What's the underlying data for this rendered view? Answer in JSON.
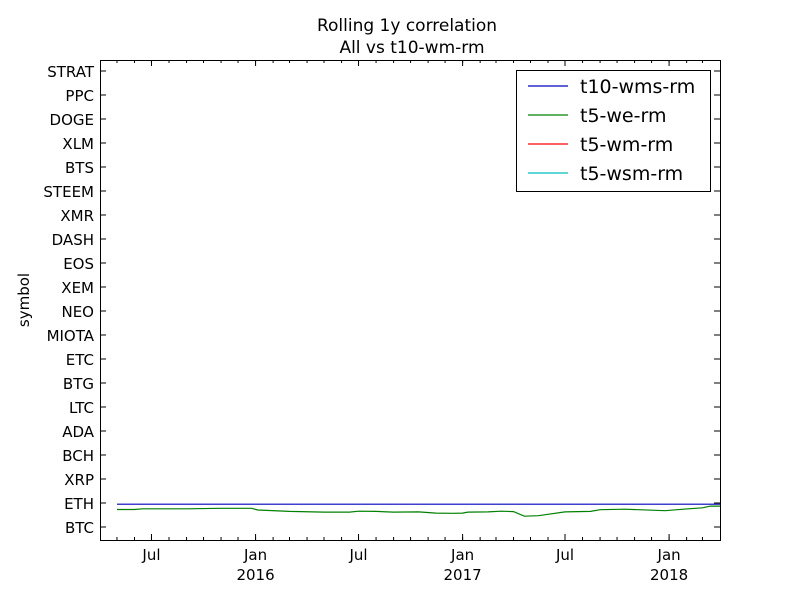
{
  "chart_data": {
    "type": "line",
    "title": "Rolling 1y correlation",
    "subtitle": "All vs t10-wm-rm",
    "xlabel": "",
    "ylabel": "symbol",
    "categories": [
      "BTC",
      "ETH",
      "XRP",
      "BCH",
      "ADA",
      "LTC",
      "BTG",
      "ETC",
      "MIOTA",
      "NEO",
      "XEM",
      "EOS",
      "DASH",
      "XMR",
      "STEEM",
      "BTS",
      "XLM",
      "DOGE",
      "PPC",
      "STRAT"
    ],
    "xlim": [
      "2015-04-01",
      "2018-04-01"
    ],
    "x_ticks": [
      {
        "date": "2015-07-01",
        "label": "Jul",
        "year": ""
      },
      {
        "date": "2016-01-01",
        "label": "Jan",
        "year": "2016"
      },
      {
        "date": "2016-07-01",
        "label": "Jul",
        "year": ""
      },
      {
        "date": "2017-01-01",
        "label": "Jan",
        "year": "2017"
      },
      {
        "date": "2017-07-01",
        "label": "Jul",
        "year": ""
      },
      {
        "date": "2018-01-01",
        "label": "Jan",
        "year": "2018"
      }
    ],
    "legend_position": "top-right",
    "grid": false,
    "series": [
      {
        "name": "t10-wms-rm",
        "color": "#0000bf",
        "points": [
          [
            "2015-05-01",
            0.95
          ],
          [
            "2018-04-01",
            0.95
          ]
        ]
      },
      {
        "name": "t5-we-rm",
        "color": "#008000",
        "points": [
          [
            "2015-05-01",
            0.73
          ],
          [
            "2015-06-01",
            0.73
          ],
          [
            "2015-06-15",
            0.76
          ],
          [
            "2015-09-01",
            0.76
          ],
          [
            "2015-11-01",
            0.78
          ],
          [
            "2015-12-25",
            0.78
          ],
          [
            "2016-01-05",
            0.71
          ],
          [
            "2016-03-01",
            0.65
          ],
          [
            "2016-05-01",
            0.62
          ],
          [
            "2016-06-15",
            0.62
          ],
          [
            "2016-07-01",
            0.66
          ],
          [
            "2016-08-01",
            0.65
          ],
          [
            "2016-09-01",
            0.62
          ],
          [
            "2016-10-15",
            0.63
          ],
          [
            "2016-11-15",
            0.58
          ],
          [
            "2016-12-15",
            0.57
          ],
          [
            "2017-01-01",
            0.58
          ],
          [
            "2017-01-10",
            0.62
          ],
          [
            "2017-02-15",
            0.63
          ],
          [
            "2017-03-10",
            0.66
          ],
          [
            "2017-04-01",
            0.64
          ],
          [
            "2017-04-20",
            0.45
          ],
          [
            "2017-05-15",
            0.47
          ],
          [
            "2017-06-01",
            0.53
          ],
          [
            "2017-07-01",
            0.63
          ],
          [
            "2017-08-15",
            0.65
          ],
          [
            "2017-09-01",
            0.72
          ],
          [
            "2017-10-15",
            0.74
          ],
          [
            "2017-12-01",
            0.7
          ],
          [
            "2017-12-25",
            0.68
          ],
          [
            "2018-01-15",
            0.72
          ],
          [
            "2018-03-01",
            0.8
          ],
          [
            "2018-03-15",
            0.87
          ],
          [
            "2018-04-01",
            0.87
          ]
        ]
      },
      {
        "name": "t5-wm-rm",
        "color": "#ff0000",
        "points": []
      },
      {
        "name": "t5-wsm-rm",
        "color": "#00bfbf",
        "points": []
      }
    ]
  }
}
